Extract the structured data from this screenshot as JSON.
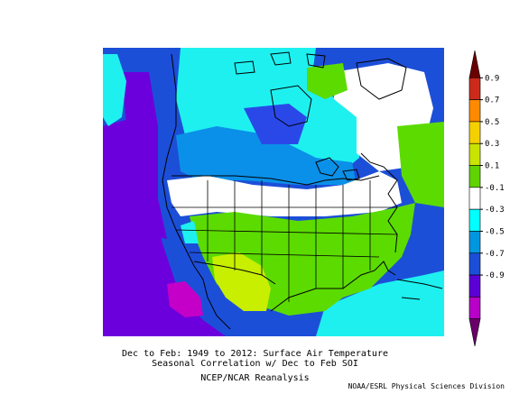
{
  "caption": {
    "line1": "Dec to Feb: 1949 to 2012: Surface Air Temperature",
    "line2": "Seasonal Correlation w/ Dec to Feb SOI",
    "line3": "NCEP/NCAR Reanalysis"
  },
  "credit": "NOAA/ESRL Physical Sciences Division",
  "colorbar": {
    "ticks": [
      "0.9",
      "0.7",
      "0.5",
      "0.3",
      "0.1",
      "-0.1",
      "-0.3",
      "-0.5",
      "-0.7",
      "-0.9"
    ],
    "colors": [
      "#6b0000",
      "#cc2a1a",
      "#ff8a00",
      "#f5d000",
      "#c8e400",
      "#5fd400",
      "#ffffff",
      "#00ffff",
      "#0096e0",
      "#1c4fd8",
      "#5b00d6",
      "#b800c8",
      "#6a006a"
    ]
  },
  "field_colors": {
    "ocean_deep_purple": "#6c00dc",
    "blue": "#2a48e8",
    "medium_blue": "#0a90e8",
    "cyan": "#1ef0f0",
    "white": "#ffffff",
    "green": "#5cdb00",
    "yellow_green": "#c8ee00",
    "magenta": "#c400c8"
  }
}
